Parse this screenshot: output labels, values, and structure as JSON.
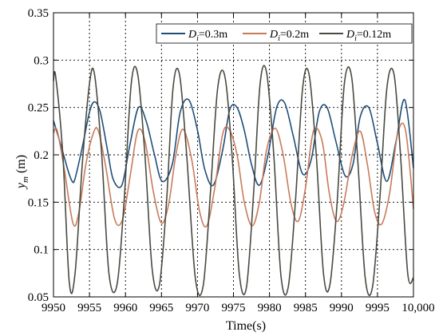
{
  "chart_data": {
    "type": "line",
    "title": "",
    "xlabel": "Time(s)",
    "ylabel_main": "y",
    "ylabel_sub": "m",
    "ylabel_unit": " (m)",
    "xlim": [
      9950,
      10000
    ],
    "ylim": [
      0.05,
      0.35
    ],
    "x_ticks": [
      9950,
      9955,
      9960,
      9965,
      9970,
      9975,
      9980,
      9985,
      9990,
      9995,
      10000
    ],
    "x_tick_labels": [
      "9950",
      "9955",
      "9960",
      "9965",
      "9970",
      "9975",
      "9980",
      "9985",
      "9990",
      "9995",
      "10,000"
    ],
    "y_ticks": [
      0.05,
      0.1,
      0.15,
      0.2,
      0.25,
      0.3,
      0.35
    ],
    "y_tick_labels": [
      "0.05",
      "0.1",
      "0.15",
      "0.2",
      "0.25",
      "0.3",
      "0.35"
    ],
    "grid": true,
    "legend_position": "top-right",
    "series": [
      {
        "name": "D_i=0.3m",
        "label_main": "D",
        "label_sub": "i",
        "label_rest": "=0.3m",
        "color": "#1f4e79",
        "x": [
          9950.0,
          9951.0,
          9952.0,
          9952.6,
          9953.0,
          9954.0,
          9955.0,
          9955.7,
          9956.5,
          9957.5,
          9958.3,
          9959.5,
          9960.6,
          9961.8,
          9962.9,
          9964.0,
          9965.1,
          9966.5,
          9967.6,
          9968.8,
          9970.0,
          9971.0,
          9972.2,
          9973.5,
          9974.5,
          9975.5,
          9976.5,
          9977.5,
          9978.6,
          9979.8,
          9981.0,
          9982.1,
          9983.3,
          9984.6,
          9985.8,
          9986.9,
          9988.0,
          9989.2,
          9990.5,
          9991.6,
          9992.6,
          9993.8,
          9995.0,
          9996.3,
          9997.6,
          9998.8,
          10000.0
        ],
        "y": [
          0.236,
          0.211,
          0.184,
          0.172,
          0.175,
          0.208,
          0.245,
          0.256,
          0.245,
          0.205,
          0.174,
          0.168,
          0.21,
          0.25,
          0.235,
          0.201,
          0.172,
          0.19,
          0.245,
          0.258,
          0.226,
          0.185,
          0.168,
          0.205,
          0.248,
          0.25,
          0.226,
          0.19,
          0.168,
          0.2,
          0.25,
          0.255,
          0.22,
          0.18,
          0.195,
          0.245,
          0.25,
          0.215,
          0.178,
          0.19,
          0.24,
          0.25,
          0.212,
          0.172,
          0.215,
          0.258,
          0.186
        ]
      },
      {
        "name": "D_i=0.2m",
        "label_main": "D",
        "label_sub": "i",
        "label_rest": "=0.2m",
        "color": "#c87b5a",
        "x": [
          9950.0,
          9950.5,
          9951.5,
          9952.7,
          9953.5,
          9954.5,
          9955.5,
          9956.2,
          9957.2,
          9958.5,
          9959.6,
          9960.7,
          9961.7,
          9962.7,
          9963.9,
          9965.0,
          9966.0,
          9967.0,
          9968.0,
          9969.2,
          9970.3,
          9971.3,
          9972.4,
          9973.5,
          9974.4,
          9975.5,
          9976.5,
          9977.6,
          9978.6,
          9979.6,
          9980.8,
          9981.9,
          9983.0,
          9984.0,
          9985.0,
          9986.1,
          9987.3,
          9988.3,
          9989.3,
          9990.3,
          9991.5,
          9992.6,
          9993.6,
          9994.6,
          9995.6,
          9996.7,
          9997.8,
          9998.9,
          10000.0
        ],
        "y": [
          0.223,
          0.226,
          0.185,
          0.128,
          0.138,
          0.19,
          0.222,
          0.226,
          0.19,
          0.132,
          0.132,
          0.18,
          0.225,
          0.215,
          0.16,
          0.128,
          0.148,
          0.2,
          0.227,
          0.195,
          0.14,
          0.125,
          0.165,
          0.222,
          0.227,
          0.2,
          0.15,
          0.125,
          0.15,
          0.205,
          0.228,
          0.2,
          0.148,
          0.13,
          0.165,
          0.225,
          0.215,
          0.16,
          0.13,
          0.148,
          0.2,
          0.225,
          0.19,
          0.14,
          0.127,
          0.16,
          0.222,
          0.226,
          0.143
        ]
      },
      {
        "name": "D_i=0.12m",
        "label_main": "D",
        "label_sub": "i",
        "label_rest": "=0.12m",
        "color": "#4a4a42",
        "x": [
          9950.0,
          9950.3,
          9951.3,
          9952.2,
          9953.0,
          9954.0,
          9955.0,
          9955.7,
          9956.7,
          9957.7,
          9958.8,
          9959.8,
          9960.8,
          9961.7,
          9962.7,
          9963.7,
          9964.7,
          9965.7,
          9966.6,
          9967.5,
          9968.5,
          9969.7,
          9970.8,
          9971.8,
          9972.8,
          9973.8,
          9974.8,
          9975.8,
          9976.8,
          9977.8,
          9978.7,
          9979.6,
          9980.6,
          9981.6,
          9982.6,
          9983.6,
          9984.6,
          9985.5,
          9986.5,
          9987.5,
          9988.4,
          9989.4,
          9990.4,
          9991.4,
          9992.3,
          9993.3,
          9994.3,
          9995.3,
          9996.3,
          9997.3,
          9998.2,
          9999.2,
          10000.0
        ],
        "y": [
          0.278,
          0.283,
          0.2,
          0.065,
          0.075,
          0.19,
          0.275,
          0.285,
          0.2,
          0.075,
          0.062,
          0.15,
          0.275,
          0.285,
          0.2,
          0.08,
          0.062,
          0.15,
          0.27,
          0.285,
          0.2,
          0.07,
          0.062,
          0.16,
          0.27,
          0.283,
          0.2,
          0.075,
          0.06,
          0.16,
          0.275,
          0.287,
          0.2,
          0.072,
          0.06,
          0.15,
          0.27,
          0.285,
          0.2,
          0.075,
          0.063,
          0.15,
          0.275,
          0.283,
          0.19,
          0.07,
          0.06,
          0.15,
          0.27,
          0.285,
          0.2,
          0.075,
          0.07
        ]
      }
    ]
  }
}
